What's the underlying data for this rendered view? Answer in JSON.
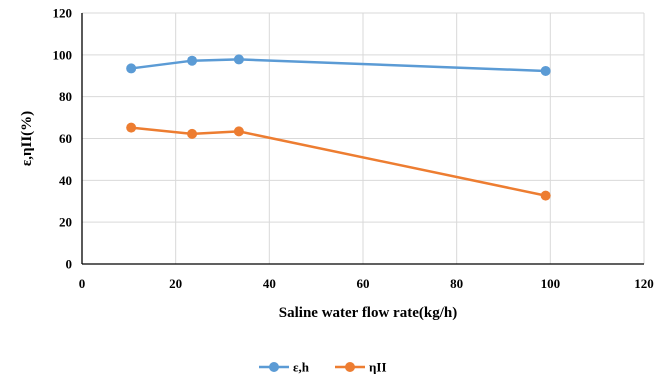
{
  "chart_data": {
    "type": "line",
    "xlabel": "Saline water flow rate(kg/h)",
    "ylabel": "ε,ηII(%)",
    "xlim": [
      0,
      120
    ],
    "ylim": [
      0,
      120
    ],
    "xticks": [
      0,
      20,
      40,
      60,
      80,
      100,
      120
    ],
    "yticks": [
      0,
      20,
      40,
      60,
      80,
      100,
      120
    ],
    "grid": true,
    "legend_position": "bottom",
    "series": [
      {
        "name": "ε,h",
        "color": "#5B9BD5",
        "x": [
          10.5,
          23.5,
          33.5,
          99.0
        ],
        "y": [
          93.5,
          97.2,
          97.8,
          92.3
        ]
      },
      {
        "name": "ηII",
        "color": "#ED7D31",
        "x": [
          10.5,
          23.5,
          33.5,
          99.0
        ],
        "y": [
          65.2,
          62.2,
          63.4,
          32.7
        ]
      }
    ]
  }
}
